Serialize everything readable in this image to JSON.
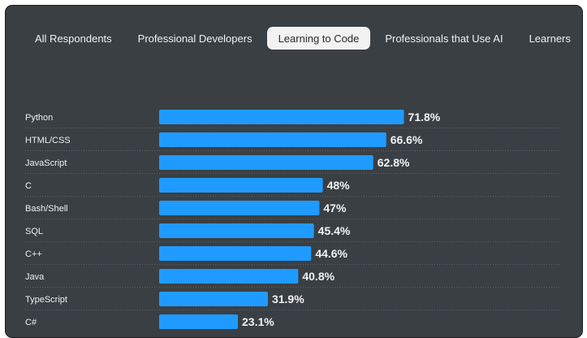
{
  "tabs": [
    {
      "label": "All Respondents",
      "active": false
    },
    {
      "label": "Professional Developers",
      "active": false
    },
    {
      "label": "Learning to Code",
      "active": true
    },
    {
      "label": "Professionals that Use AI",
      "active": false
    },
    {
      "label": "Learners",
      "active": false
    }
  ],
  "colors": {
    "bar": "#1f9bff",
    "panel": "#3a3f44",
    "active_tab": "#f2f2f2"
  },
  "chart_data": {
    "type": "bar",
    "orientation": "horizontal",
    "categories": [
      "Python",
      "HTML/CSS",
      "JavaScript",
      "C",
      "Bash/Shell",
      "SQL",
      "C++",
      "Java",
      "TypeScript",
      "C#"
    ],
    "values": [
      71.8,
      66.6,
      62.8,
      48,
      47,
      45.4,
      44.6,
      40.8,
      31.9,
      23.1
    ],
    "value_labels": [
      "71.8%",
      "66.6%",
      "62.8%",
      "48%",
      "47%",
      "45.4%",
      "44.6%",
      "40.8%",
      "31.9%",
      "23.1%"
    ],
    "unit": "%",
    "xlim": [
      0,
      100
    ],
    "grid": false
  }
}
